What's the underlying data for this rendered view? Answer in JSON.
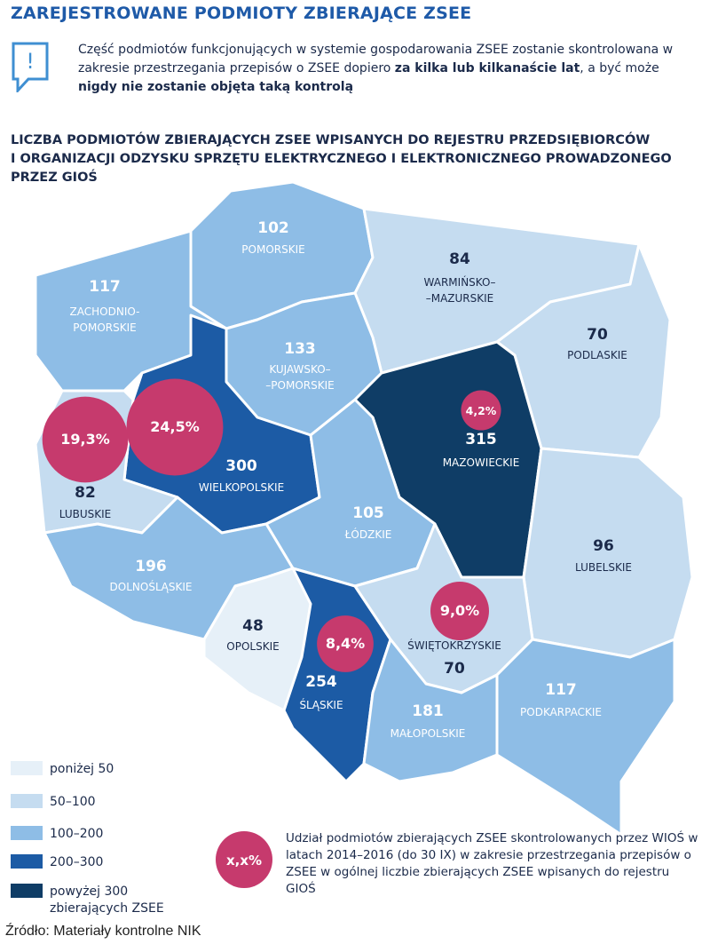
{
  "header": {
    "title": "ZAREJESTROWANE PODMIOTY ZBIERAJĄCE ZSEE"
  },
  "note": {
    "icon": "!",
    "segments": [
      {
        "text": "Część podmiotów funkcjonujących w systemie gospodarowania ZSEE zostanie skontrolowana w zakresie przestrzegania przepisów o ZSEE dopiero ",
        "bold": false
      },
      {
        "text": "za kilka lub kilkanaście lat",
        "bold": true
      },
      {
        "text": ", a być może ",
        "bold": false
      },
      {
        "text": "nigdy nie zostanie objęta taką kontrolą",
        "bold": true
      }
    ]
  },
  "map": {
    "title_lines": [
      "LICZBA PODMIOTÓW ZBIERAJĄCYCH ZSEE WPISANYCH DO REJESTRU PRZEDSIĘBIORCÓW",
      "I ORGANIZACJI ODZYSKU SPRZĘTU ELEKTRYCZNEGO I ELEKTRONICZNEGO PROWADZONEGO",
      "PRZEZ GIOŚ"
    ],
    "regions": [
      {
        "name_lines": [
          "POMORSKIE"
        ],
        "value": 102,
        "class": 2
      },
      {
        "name_lines": [
          "ZACHODNIO-",
          "POMORSKIE"
        ],
        "value": 117,
        "class": 2
      },
      {
        "name_lines": [
          "WARMIŃSKO–",
          "–MAZURSKIE"
        ],
        "value": 84,
        "class": 1
      },
      {
        "name_lines": [
          "PODLASKIE"
        ],
        "value": 70,
        "class": 1
      },
      {
        "name_lines": [
          "KUJAWSKO–",
          "–POMORSKIE"
        ],
        "value": 133,
        "class": 2
      },
      {
        "name_lines": [
          "WIELKOPOLSKIE"
        ],
        "value": 300,
        "class": 3,
        "share": 24.5,
        "share_label": "24,5%"
      },
      {
        "name_lines": [
          "LUBUSKIE"
        ],
        "value": 82,
        "class": 1,
        "share": 19.3,
        "share_label": "19,3%"
      },
      {
        "name_lines": [
          "MAZOWIECKIE"
        ],
        "value": 315,
        "class": 4,
        "share": 4.2,
        "share_label": "4,2%"
      },
      {
        "name_lines": [
          "LUBELSKIE"
        ],
        "value": 96,
        "class": 1
      },
      {
        "name_lines": [
          "ŁÓDZKIE"
        ],
        "value": 105,
        "class": 2
      },
      {
        "name_lines": [
          "DOLNOŚLĄSKIE"
        ],
        "value": 196,
        "class": 2
      },
      {
        "name_lines": [
          "OPOLSKIE"
        ],
        "value": 48,
        "class": 0
      },
      {
        "name_lines": [
          "ŚLĄSKIE"
        ],
        "value": 254,
        "class": 3,
        "share": 8.4,
        "share_label": "8,4%"
      },
      {
        "name_lines": [
          "ŚWIĘTOKRZYSKIE"
        ],
        "value": 70,
        "class": 1,
        "share": 9.0,
        "share_label": "9,0%"
      },
      {
        "name_lines": [
          "MAŁOPOLSKIE"
        ],
        "value": 181,
        "class": 2
      },
      {
        "name_lines": [
          "PODKARPACKIE"
        ],
        "value": 117,
        "class": 2
      }
    ],
    "legend": [
      {
        "label_lines": [
          "poniżej 50"
        ],
        "color": "#e6f0f8"
      },
      {
        "label_lines": [
          "50–100"
        ],
        "color": "#c5dcf0"
      },
      {
        "label_lines": [
          "100–200"
        ],
        "color": "#8ebde6"
      },
      {
        "label_lines": [
          "200–300"
        ],
        "color": "#1c5ba5"
      },
      {
        "label_lines": [
          "powyżej 300",
          "zbierających ZSEE"
        ],
        "color": "#0f3d66"
      }
    ],
    "bubble_color": "#c63a6d",
    "share_legend": {
      "symbol": "x,x%",
      "text": "Udział podmiotów zbierających ZSEE skontrolowanych przez WIOŚ w latach 2014–2016 (do 30 IX) w zakresie przestrzegania przepisów o ZSEE w ogólnej liczbie zbierających ZSEE wpisanych do rejestru GIOŚ"
    }
  },
  "source": "Źródło: Materiały kontrolne NIK"
}
